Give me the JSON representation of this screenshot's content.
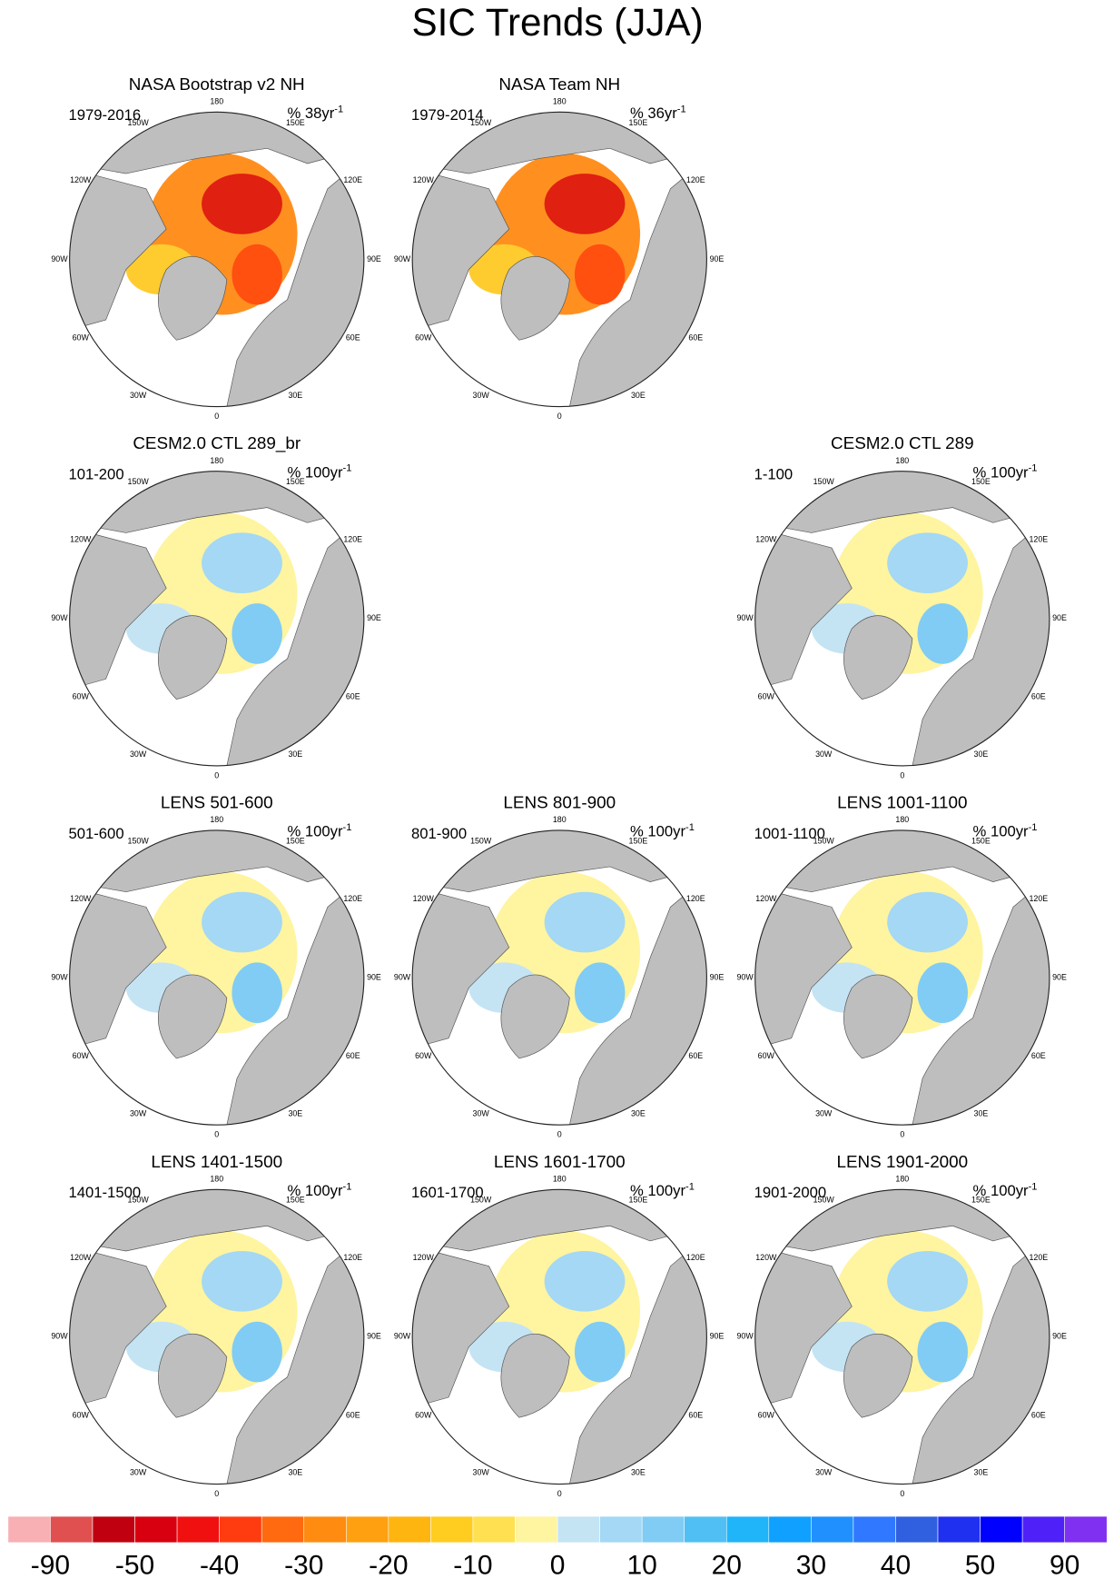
{
  "title": "SIC Trends (JJA)",
  "lon_labels": [
    "0",
    "30E",
    "60E",
    "90E",
    "120E",
    "150E",
    "180",
    "150W",
    "120W",
    "90W",
    "60W",
    "30W"
  ],
  "panels": [
    {
      "title": "NASA Bootstrap v2 NH",
      "period": "1979-2016",
      "units": "% 38yr",
      "exponent": "-1"
    },
    {
      "title": "NASA Team NH",
      "period": "1979-2014",
      "units": "% 36yr",
      "exponent": "-1"
    },
    {
      "title": "CESM2.0 CTL 289_br",
      "period": "101-200",
      "units": "% 100yr",
      "exponent": "-1"
    },
    {
      "title": "CESM2.0 CTL 289",
      "period": "1-100",
      "units": "% 100yr",
      "exponent": "-1"
    },
    {
      "title": "LENS 501-600",
      "period": "501-600",
      "units": "% 100yr",
      "exponent": "-1"
    },
    {
      "title": "LENS 801-900",
      "period": "801-900",
      "units": "% 100yr",
      "exponent": "-1"
    },
    {
      "title": "LENS 1001-1100",
      "period": "1001-1100",
      "units": "% 100yr",
      "exponent": "-1"
    },
    {
      "title": "LENS 1401-1500",
      "period": "1401-1500",
      "units": "% 100yr",
      "exponent": "-1"
    },
    {
      "title": "LENS 1601-1700",
      "period": "1601-1700",
      "units": "% 100yr",
      "exponent": "-1"
    },
    {
      "title": "LENS 1901-2000",
      "period": "1901-2000",
      "units": "% 100yr",
      "exponent": "-1"
    }
  ],
  "colorbar": {
    "colors": [
      "#f8b0b4",
      "#e05050",
      "#c00010",
      "#d80010",
      "#f01010",
      "#ff3c10",
      "#ff6a10",
      "#ff8c10",
      "#ffa010",
      "#ffb510",
      "#ffcc20",
      "#ffe050",
      "#fff4a0",
      "#c4e4f4",
      "#a4d8f4",
      "#80ccf4",
      "#50c0f4",
      "#20b4f8",
      "#10a0ff",
      "#2090ff",
      "#3078ff",
      "#3060e0",
      "#2030f0",
      "#0000ff",
      "#5020f8",
      "#8030f0"
    ],
    "labels": [
      -90,
      -50,
      -40,
      -30,
      -20,
      -10,
      0,
      10,
      20,
      30,
      40,
      50,
      90
    ]
  }
}
